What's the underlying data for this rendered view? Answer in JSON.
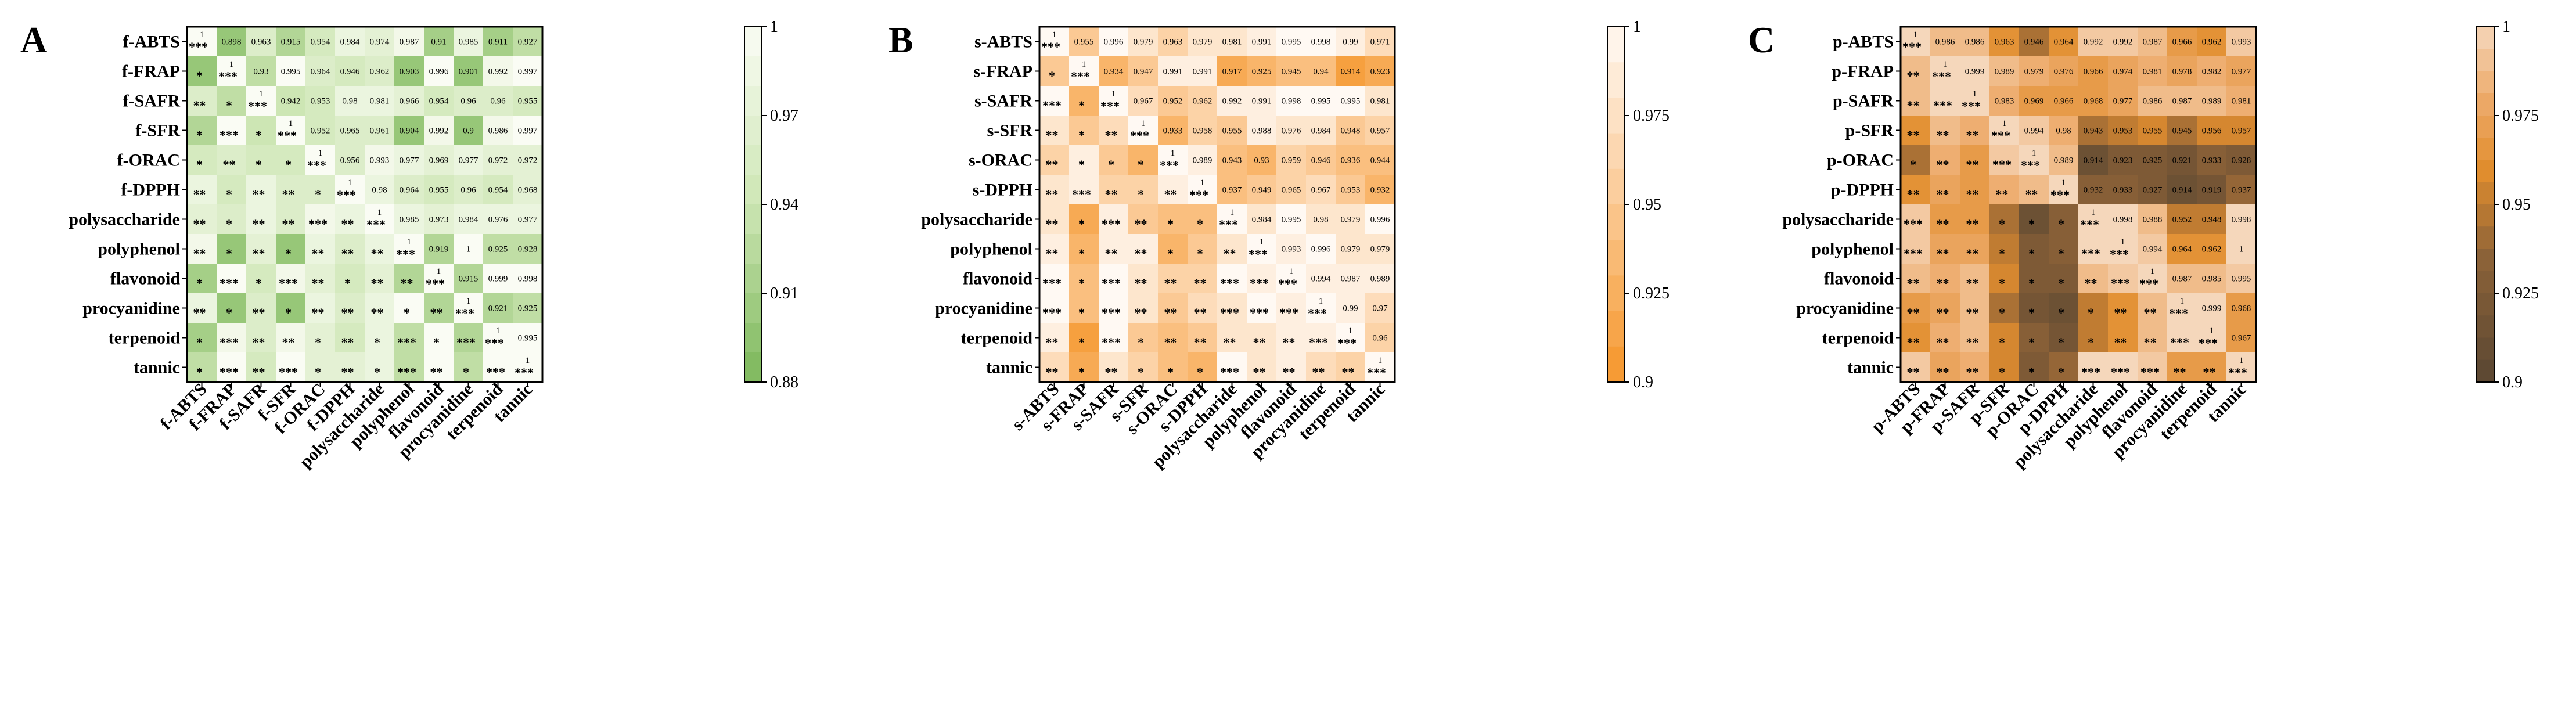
{
  "chart_data": [
    {
      "type": "heatmap",
      "panel_label": "A",
      "rows": [
        "f-ABTS",
        "f-FRAP",
        "f-SAFR",
        "f-SFR",
        "f-ORAC",
        "f-DPPH",
        "polysaccharide",
        "polyphenol",
        "flavonoid",
        "procyanidine",
        "terpenoid",
        "tannic"
      ],
      "columns": [
        "f-ABTS",
        "f-FRAP",
        "f-SAFR",
        "f-SFR",
        "f-ORAC",
        "f-DPPH",
        "polysaccharide",
        "polyphenol",
        "flavonoid",
        "procyanidine",
        "terpenoid",
        "tannic"
      ],
      "upper_values": [
        [
          1,
          0.898,
          0.963,
          0.915,
          0.954,
          0.984,
          0.974,
          0.987,
          0.91,
          0.985,
          0.911,
          0.927
        ],
        [
          null,
          1,
          0.93,
          0.995,
          0.964,
          0.946,
          0.962,
          0.903,
          0.996,
          0.901,
          0.992,
          0.997
        ],
        [
          null,
          null,
          1,
          0.942,
          0.953,
          0.98,
          0.981,
          0.966,
          0.954,
          0.96,
          0.96,
          0.955
        ],
        [
          null,
          null,
          null,
          1,
          0.952,
          0.965,
          0.961,
          0.904,
          0.992,
          0.9,
          0.986,
          0.997
        ],
        [
          null,
          null,
          null,
          null,
          1,
          0.956,
          0.993,
          0.977,
          0.969,
          0.977,
          0.972,
          0.972
        ],
        [
          null,
          null,
          null,
          null,
          null,
          1,
          0.98,
          0.964,
          0.955,
          0.96,
          0.954,
          0.968
        ],
        [
          null,
          null,
          null,
          null,
          null,
          null,
          1,
          0.985,
          0.973,
          0.984,
          0.976,
          0.977
        ],
        [
          null,
          null,
          null,
          null,
          null,
          null,
          null,
          1,
          0.919,
          1,
          0.925,
          0.928
        ],
        [
          null,
          null,
          null,
          null,
          null,
          null,
          null,
          null,
          1,
          0.915,
          0.999,
          0.998
        ],
        [
          null,
          null,
          null,
          null,
          null,
          null,
          null,
          null,
          null,
          1,
          0.921,
          0.925
        ],
        [
          null,
          null,
          null,
          null,
          null,
          null,
          null,
          null,
          null,
          null,
          1,
          0.995
        ],
        [
          null,
          null,
          null,
          null,
          null,
          null,
          null,
          null,
          null,
          null,
          null,
          1
        ]
      ],
      "lower_sig": [
        [],
        [
          "*"
        ],
        [
          "**",
          "*"
        ],
        [
          "*",
          "***",
          "*"
        ],
        [
          "*",
          "**",
          "*",
          "*"
        ],
        [
          "**",
          "*",
          "**",
          "**",
          "*"
        ],
        [
          "**",
          "*",
          "**",
          "**",
          "***",
          "**"
        ],
        [
          "**",
          "*",
          "**",
          "*",
          "**",
          "**",
          "**"
        ],
        [
          "*",
          "***",
          "*",
          "***",
          "**",
          "*",
          "**",
          "**"
        ],
        [
          "**",
          "*",
          "**",
          "*",
          "**",
          "**",
          "**",
          "*",
          "**"
        ],
        [
          "*",
          "***",
          "**",
          "**",
          "*",
          "**",
          "*",
          "***",
          "*",
          "***"
        ],
        [
          "*",
          "***",
          "**",
          "***",
          "*",
          "**",
          "*",
          "***",
          "**",
          "*",
          "***"
        ]
      ],
      "colorbar": {
        "min": 0.88,
        "max": 1,
        "ticks": [
          "1",
          "0.97",
          "0.94",
          "0.91",
          "0.88"
        ],
        "low_color": "#7CB75A",
        "high_color": "#FAFCF4"
      }
    },
    {
      "type": "heatmap",
      "panel_label": "B",
      "rows": [
        "s-ABTS",
        "s-FRAP",
        "s-SAFR",
        "s-SFR",
        "s-ORAC",
        "s-DPPH",
        "polysaccharide",
        "polyphenol",
        "flavonoid",
        "procyanidine",
        "terpenoid",
        "tannic"
      ],
      "columns": [
        "s-ABTS",
        "s-FRAP",
        "s-SAFR",
        "s-SFR",
        "s-ORAC",
        "s-DPPH",
        "polysaccharide",
        "polyphenol",
        "flavonoid",
        "procyanidine",
        "terpenoid",
        "tannic"
      ],
      "upper_values": [
        [
          1,
          0.955,
          0.996,
          0.979,
          0.963,
          0.979,
          0.981,
          0.991,
          0.995,
          0.998,
          0.99,
          0.971
        ],
        [
          null,
          1,
          0.934,
          0.947,
          0.991,
          0.991,
          0.917,
          0.925,
          0.945,
          0.94,
          0.914,
          0.923
        ],
        [
          null,
          null,
          1,
          0.967,
          0.952,
          0.962,
          0.992,
          0.991,
          0.998,
          0.995,
          0.995,
          0.981
        ],
        [
          null,
          null,
          null,
          1,
          0.933,
          0.958,
          0.955,
          0.988,
          0.976,
          0.984,
          0.948,
          0.957
        ],
        [
          null,
          null,
          null,
          null,
          1,
          0.989,
          0.943,
          0.93,
          0.959,
          0.946,
          0.936,
          0.944
        ],
        [
          null,
          null,
          null,
          null,
          null,
          1,
          0.937,
          0.949,
          0.965,
          0.967,
          0.953,
          0.932
        ],
        [
          null,
          null,
          null,
          null,
          null,
          null,
          1,
          0.984,
          0.995,
          0.98,
          0.979,
          0.996
        ],
        [
          null,
          null,
          null,
          null,
          null,
          null,
          null,
          1,
          0.993,
          0.996,
          0.979,
          0.979
        ],
        [
          null,
          null,
          null,
          null,
          null,
          null,
          null,
          null,
          1,
          0.994,
          0.987,
          0.989
        ],
        [
          null,
          null,
          null,
          null,
          null,
          null,
          null,
          null,
          null,
          1,
          0.99,
          0.97
        ],
        [
          null,
          null,
          null,
          null,
          null,
          null,
          null,
          null,
          null,
          null,
          1,
          0.96
        ],
        [
          null,
          null,
          null,
          null,
          null,
          null,
          null,
          null,
          null,
          null,
          null,
          1
        ]
      ],
      "lower_sig": [
        [],
        [
          "*"
        ],
        [
          "***",
          "*"
        ],
        [
          "**",
          "*",
          "**"
        ],
        [
          "**",
          "*",
          "*",
          "*"
        ],
        [
          "**",
          "***",
          "**",
          "*",
          "**"
        ],
        [
          "**",
          "*",
          "***",
          "**",
          "*",
          "*"
        ],
        [
          "**",
          "*",
          "**",
          "**",
          "*",
          "*",
          "**"
        ],
        [
          "***",
          "*",
          "***",
          "**",
          "**",
          "**",
          "***",
          "***"
        ],
        [
          "***",
          "*",
          "***",
          "**",
          "**",
          "**",
          "***",
          "***",
          "***"
        ],
        [
          "**",
          "*",
          "***",
          "*",
          "**",
          "**",
          "**",
          "**",
          "**",
          "***"
        ],
        [
          "**",
          "*",
          "**",
          "*",
          "*",
          "*",
          "***",
          "**",
          "**",
          "**",
          "**"
        ]
      ],
      "colorbar": {
        "min": 0.9,
        "max": 1,
        "ticks": [
          "1",
          "0.975",
          "0.95",
          "0.925",
          "0.9"
        ],
        "low_color": "#F5962A",
        "high_color": "#FFF9F3"
      }
    },
    {
      "type": "heatmap",
      "panel_label": "C",
      "rows": [
        "p-ABTS",
        "p-FRAP",
        "p-SAFR",
        "p-SFR",
        "p-ORAC",
        "p-DPPH",
        "polysaccharide",
        "polyphenol",
        "flavonoid",
        "procyanidine",
        "terpenoid",
        "tannic"
      ],
      "columns": [
        "p-ABTS",
        "p-FRAP",
        "p-SAFR",
        "p-SFR",
        "p-ORAC",
        "p-DPPH",
        "polysaccharide",
        "polyphenol",
        "flavonoid",
        "procyanidine",
        "terpenoid",
        "tannic"
      ],
      "upper_values": [
        [
          1,
          0.986,
          0.986,
          0.963,
          0.946,
          0.964,
          0.992,
          0.992,
          0.987,
          0.966,
          0.962,
          0.993
        ],
        [
          null,
          1,
          0.999,
          0.989,
          0.979,
          0.976,
          0.966,
          0.974,
          0.981,
          0.978,
          0.982,
          0.977
        ],
        [
          null,
          null,
          1,
          0.983,
          0.969,
          0.966,
          0.968,
          0.977,
          0.986,
          0.987,
          0.989,
          0.981
        ],
        [
          null,
          null,
          null,
          1,
          0.994,
          0.98,
          0.943,
          0.953,
          0.955,
          0.945,
          0.956,
          0.957
        ],
        [
          null,
          null,
          null,
          null,
          1,
          0.989,
          0.914,
          0.923,
          0.925,
          0.921,
          0.933,
          0.928
        ],
        [
          null,
          null,
          null,
          null,
          null,
          1,
          0.932,
          0.933,
          0.927,
          0.914,
          0.919,
          0.937
        ],
        [
          null,
          null,
          null,
          null,
          null,
          null,
          1,
          0.998,
          0.988,
          0.952,
          0.948,
          0.998
        ],
        [
          null,
          null,
          null,
          null,
          null,
          null,
          null,
          1,
          0.994,
          0.964,
          0.962,
          1
        ],
        [
          null,
          null,
          null,
          null,
          null,
          null,
          null,
          null,
          1,
          0.987,
          0.985,
          0.995
        ],
        [
          null,
          null,
          null,
          null,
          null,
          null,
          null,
          null,
          null,
          1,
          0.999,
          0.968
        ],
        [
          null,
          null,
          null,
          null,
          null,
          null,
          null,
          null,
          null,
          null,
          1,
          0.967
        ],
        [
          null,
          null,
          null,
          null,
          null,
          null,
          null,
          null,
          null,
          null,
          null,
          1
        ]
      ],
      "lower_sig": [
        [],
        [
          "**"
        ],
        [
          "**",
          "***"
        ],
        [
          "**",
          "**",
          "**"
        ],
        [
          "*",
          "**",
          "**",
          "***"
        ],
        [
          "**",
          "**",
          "**",
          "**",
          "**"
        ],
        [
          "***",
          "**",
          "**",
          "*",
          "*",
          "*"
        ],
        [
          "***",
          "**",
          "**",
          "*",
          "*",
          "*",
          "***"
        ],
        [
          "**",
          "**",
          "**",
          "*",
          "*",
          "*",
          "**",
          "***"
        ],
        [
          "**",
          "**",
          "**",
          "*",
          "*",
          "*",
          "*",
          "**",
          "**"
        ],
        [
          "**",
          "**",
          "**",
          "*",
          "*",
          "*",
          "*",
          "**",
          "**",
          "***"
        ],
        [
          "**",
          "**",
          "**",
          "*",
          "*",
          "*",
          "***",
          "***",
          "***",
          "**",
          "**"
        ]
      ],
      "colorbar": {
        "min": 0.9,
        "max": 1,
        "ticks": [
          "1",
          "0.975",
          "0.95",
          "0.925",
          "0.9"
        ],
        "low_color": "#5E4A32",
        "high_color": "#F5D7BB",
        "palette": "brown-orange"
      }
    }
  ]
}
